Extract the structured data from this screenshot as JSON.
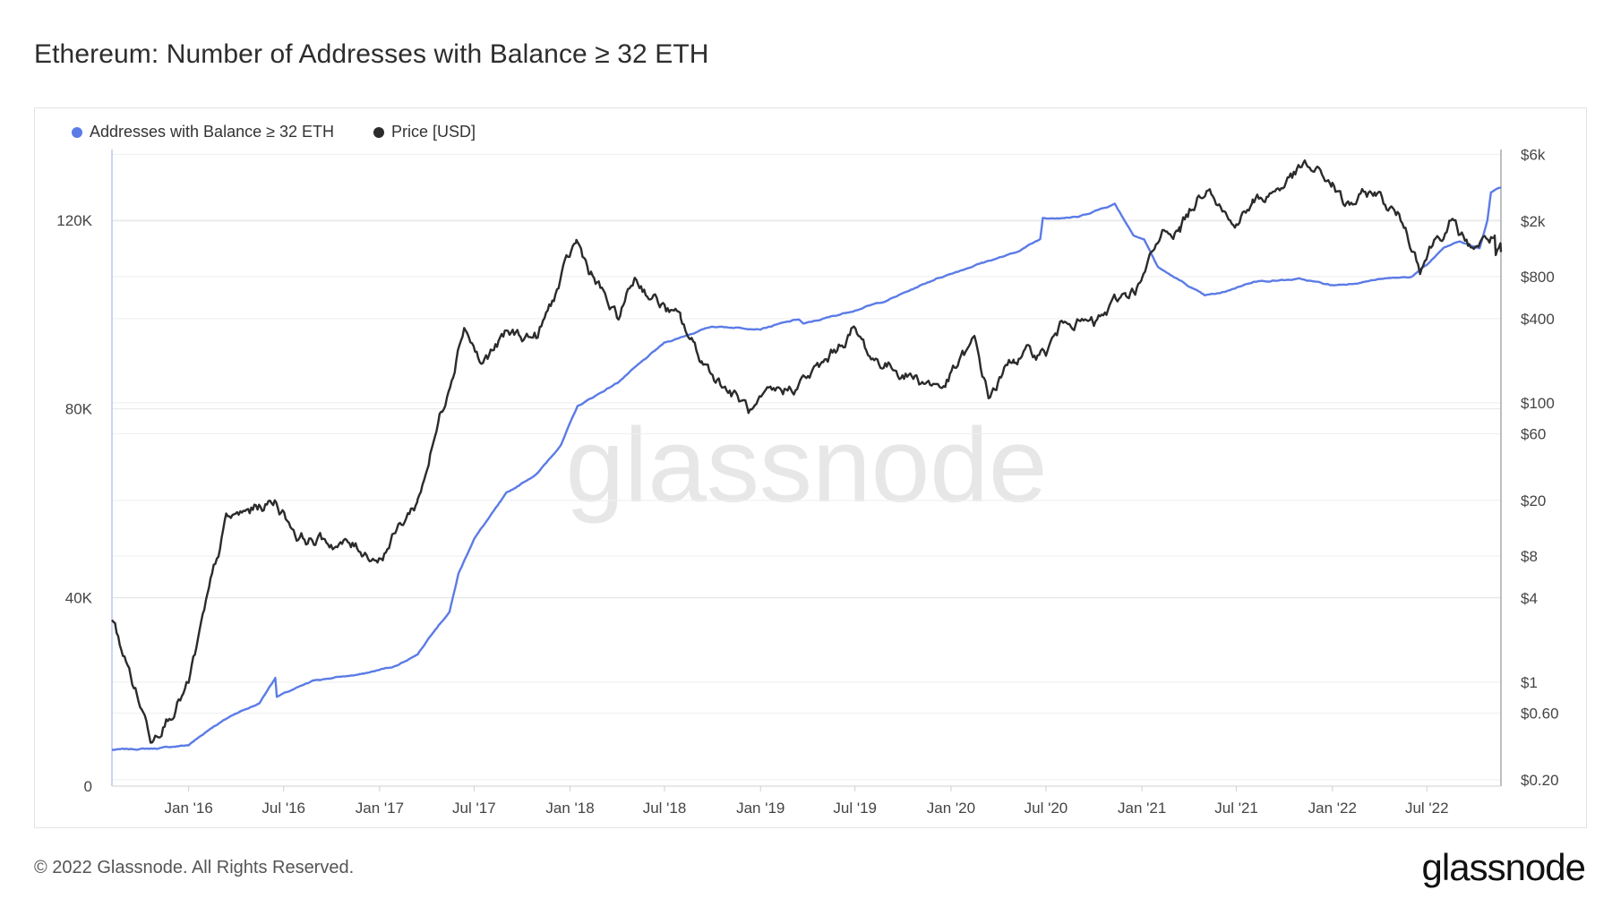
{
  "title": "Ethereum: Number of Addresses with Balance ≥ 32 ETH",
  "footer": "© 2022 Glassnode. All Rights Reserved.",
  "logo": "glassnode",
  "watermark": "glassnode",
  "colors": {
    "addresses": "#5b7be6",
    "price": "#2b2b2b",
    "grid": "#eeeeee"
  },
  "chart_data": {
    "type": "line",
    "title": "Ethereum: Number of Addresses with Balance ≥ 32 ETH",
    "legend_placement": "top-left",
    "grid": true,
    "x_ticks": [
      "Jan '16",
      "Jul '16",
      "Jan '17",
      "Jul '17",
      "Jan '18",
      "Jul '18",
      "Jan '19",
      "Jul '19",
      "Jan '20",
      "Jul '20",
      "Jan '21",
      "Jul '21",
      "Jan '22",
      "Jul '22"
    ],
    "x_range": [
      "2015-08-07",
      "2022-11-20"
    ],
    "y_left": {
      "ticks": [
        "0",
        "40K",
        "80K",
        "120K"
      ],
      "tick_values": [
        0,
        40000,
        80000,
        120000
      ],
      "range": [
        0,
        135000
      ]
    },
    "y_right": {
      "scale": "log",
      "ticks": [
        "$6k",
        "$2k",
        "$800",
        "$400",
        "$100",
        "$60",
        "$20",
        "$8",
        "$4",
        "$1",
        "$0.60",
        "$0.20"
      ],
      "tick_values": [
        6000,
        2000,
        800,
        400,
        100,
        60,
        20,
        8,
        4,
        1,
        0.6,
        0.2
      ],
      "range": [
        0.18,
        6500
      ]
    },
    "series": [
      {
        "name": "Addresses with Balance ≥ 32 ETH",
        "axis": "left",
        "color": "#5b7be6",
        "x": [
          "2015-08-07",
          "2015-11-01",
          "2016-01-01",
          "2016-02-15",
          "2016-04-01",
          "2016-05-15",
          "2016-06-15",
          "2016-06-18",
          "2016-09-01",
          "2016-12-01",
          "2017-02-01",
          "2017-03-15",
          "2017-04-15",
          "2017-05-15",
          "2017-06-01",
          "2017-07-01",
          "2017-09-01",
          "2017-11-01",
          "2017-12-15",
          "2018-01-15",
          "2018-04-01",
          "2018-07-01",
          "2018-10-01",
          "2019-01-01",
          "2019-03-15",
          "2019-03-25",
          "2019-06-01",
          "2019-09-01",
          "2019-12-01",
          "2020-03-01",
          "2020-05-01",
          "2020-06-20",
          "2020-06-25",
          "2020-09-01",
          "2020-11-10",
          "2020-12-15",
          "2021-01-05",
          "2021-02-01",
          "2021-05-01",
          "2021-06-01",
          "2021-08-01",
          "2021-11-01",
          "2022-01-01",
          "2022-02-01",
          "2022-04-01",
          "2022-06-01",
          "2022-07-01",
          "2022-08-01",
          "2022-09-01",
          "2022-10-10",
          "2022-10-25",
          "2022-11-01",
          "2022-11-20"
        ],
        "values": [
          7700,
          8000,
          8700,
          12500,
          15500,
          17500,
          23000,
          19000,
          22500,
          23800,
          25500,
          28000,
          33000,
          37000,
          45000,
          52500,
          62000,
          66500,
          72500,
          80500,
          85500,
          94000,
          97500,
          97000,
          99000,
          98000,
          100000,
          103000,
          107500,
          111000,
          113000,
          116000,
          120500,
          120700,
          123500,
          117000,
          116000,
          110000,
          104000,
          104500,
          107000,
          107500,
          106200,
          106500,
          107500,
          108000,
          110500,
          114000,
          115500,
          114000,
          120000,
          126000,
          127000
        ]
      },
      {
        "name": "Price [USD]",
        "axis": "right",
        "color": "#2b2b2b",
        "x": [
          "2015-08-07",
          "2015-10-20",
          "2016-01-01",
          "2016-03-13",
          "2016-06-17",
          "2016-08-01",
          "2016-11-01",
          "2017-01-01",
          "2017-03-15",
          "2017-05-01",
          "2017-06-12",
          "2017-07-15",
          "2017-09-01",
          "2017-11-01",
          "2018-01-13",
          "2018-02-10",
          "2018-04-01",
          "2018-05-05",
          "2018-08-01",
          "2018-09-10",
          "2018-12-15",
          "2019-02-01",
          "2019-05-01",
          "2019-06-26",
          "2019-08-01",
          "2019-11-01",
          "2019-12-15",
          "2020-02-15",
          "2020-03-13",
          "2020-05-01",
          "2020-07-01",
          "2020-08-15",
          "2020-10-01",
          "2020-12-01",
          "2021-01-01",
          "2021-02-15",
          "2021-03-15",
          "2021-05-11",
          "2021-06-22",
          "2021-08-01",
          "2021-09-10",
          "2021-11-09",
          "2022-01-01",
          "2022-01-25",
          "2022-03-25",
          "2022-05-15",
          "2022-06-18",
          "2022-07-15",
          "2022-08-13",
          "2022-09-20",
          "2022-11-08",
          "2022-11-10",
          "2022-11-20"
        ],
        "values": [
          2.8,
          0.42,
          0.95,
          14,
          20,
          11,
          9.5,
          8,
          20,
          90,
          390,
          190,
          300,
          300,
          1380,
          850,
          380,
          780,
          370,
          200,
          84,
          110,
          180,
          340,
          210,
          150,
          130,
          260,
          110,
          210,
          230,
          430,
          350,
          600,
          740,
          1750,
          1800,
          4100,
          1900,
          2600,
          3300,
          4800,
          3700,
          2500,
          3200,
          2000,
          1000,
          1500,
          1950,
          1300,
          1550,
          1150,
          1200
        ]
      }
    ]
  }
}
